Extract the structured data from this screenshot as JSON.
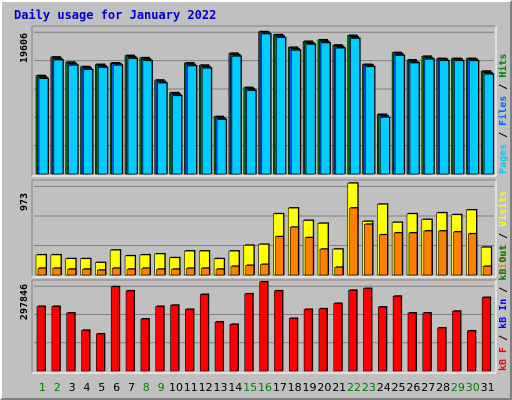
{
  "chart_data": {
    "type": "bar",
    "title": "Daily usage for January 2022",
    "categories": [
      "1",
      "2",
      "3",
      "4",
      "5",
      "6",
      "7",
      "8",
      "9",
      "10",
      "11",
      "12",
      "13",
      "14",
      "15",
      "16",
      "17",
      "18",
      "19",
      "20",
      "21",
      "22",
      "23",
      "24",
      "25",
      "26",
      "27",
      "28",
      "29",
      "30",
      "31"
    ],
    "weekend_days": [
      "1",
      "2",
      "8",
      "9",
      "15",
      "16",
      "22",
      "23",
      "29",
      "30"
    ],
    "colors": {
      "title": "#0000cc",
      "pages": "#00ccff",
      "files": "#0066ff",
      "hits": "#008000",
      "sites": "#ff8000",
      "visits": "#ffff00",
      "kbf": "#ff0000",
      "kbin": "#0000ff",
      "kbout": "#008000",
      "weekend_label": "#008000",
      "weekday_label": "#000000"
    },
    "panels": [
      {
        "id": "hits",
        "max_label": "19606",
        "ylim": [
          0,
          19606
        ],
        "legend": [
          {
            "text": "Pages",
            "color": "#00ccff"
          },
          {
            "text": "Files",
            "color": "#0066ff"
          },
          {
            "text": "Hits",
            "color": "#008000"
          }
        ],
        "series": [
          {
            "name": "Hits",
            "color": "#008000",
            "values": [
              13200,
              15700,
              15000,
              14400,
              14700,
              14900,
              15900,
              15600,
              12600,
              10900,
              14900,
              14600,
              7700,
              16200,
              11600,
              19100,
              18700,
              17000,
              17800,
              18000,
              17300,
              18600,
              14700,
              8000,
              16300,
              15300,
              15800,
              15500,
              15500,
              15500,
              13800
            ]
          },
          {
            "name": "Files",
            "color": "#0066ff",
            "values": [
              13000,
              15500,
              14800,
              14200,
              14500,
              14800,
              15700,
              15400,
              12400,
              10700,
              14700,
              14400,
              7500,
              16000,
              11400,
              19000,
              18500,
              16800,
              17600,
              17800,
              17100,
              18400,
              14600,
              7800,
              16100,
              15100,
              15600,
              15400,
              15400,
              15400,
              13600
            ]
          },
          {
            "name": "Pages",
            "color": "#00ccff",
            "values": [
              12800,
              15300,
              14600,
              14000,
              14300,
              14600,
              15500,
              15200,
              12200,
              10500,
              14500,
              14200,
              7300,
              15800,
              11200,
              18800,
              18300,
              16600,
              17400,
              17600,
              16900,
              18200,
              14400,
              7600,
              15900,
              14900,
              15400,
              15200,
              15200,
              15200,
              13400
            ]
          }
        ]
      },
      {
        "id": "visits",
        "max_label": "973",
        "ylim": [
          0,
          973
        ],
        "legend": [
          {
            "text": "Sites",
            "color": "#ff8000"
          },
          {
            "text": "Visits",
            "color": "#ffff00"
          }
        ],
        "series": [
          {
            "name": "Visits",
            "color": "#ffff00",
            "values": [
              210,
              210,
              170,
              170,
              130,
              260,
              200,
              210,
              220,
              180,
              250,
              250,
              170,
              250,
              310,
              320,
              640,
              700,
              570,
              540,
              270,
              960,
              560,
              740,
              550,
              640,
              580,
              650,
              630,
              680,
              290
            ]
          },
          {
            "name": "Sites",
            "color": "#ff8000",
            "values": [
              70,
              70,
              60,
              60,
              50,
              70,
              60,
              70,
              60,
              60,
              70,
              70,
              60,
              90,
              100,
              110,
              400,
              500,
              390,
              270,
              80,
              700,
              530,
              420,
              440,
              440,
              460,
              460,
              450,
              430,
              90
            ]
          }
        ]
      },
      {
        "id": "kbytes",
        "max_label": "297846",
        "ylim": [
          0,
          297846
        ],
        "legend": [
          {
            "text": "kB F",
            "color": "#ff0000"
          },
          {
            "text": "kB In",
            "color": "#0000ff"
          },
          {
            "text": "kB Out",
            "color": "#008000"
          }
        ],
        "series": [
          {
            "name": "kB F",
            "color": "#ff0000",
            "values": [
              216000,
              216000,
              194000,
              136000,
              124000,
              282000,
              268000,
              174000,
              216000,
              220000,
              206000,
              256000,
              164000,
              156000,
              258000,
              298000,
              268000,
              176000,
              206000,
              208000,
              226000,
              270000,
              276000,
              214000,
              250000,
              194000,
              194000,
              144000,
              200000,
              134000,
              246000
            ]
          }
        ]
      }
    ]
  }
}
